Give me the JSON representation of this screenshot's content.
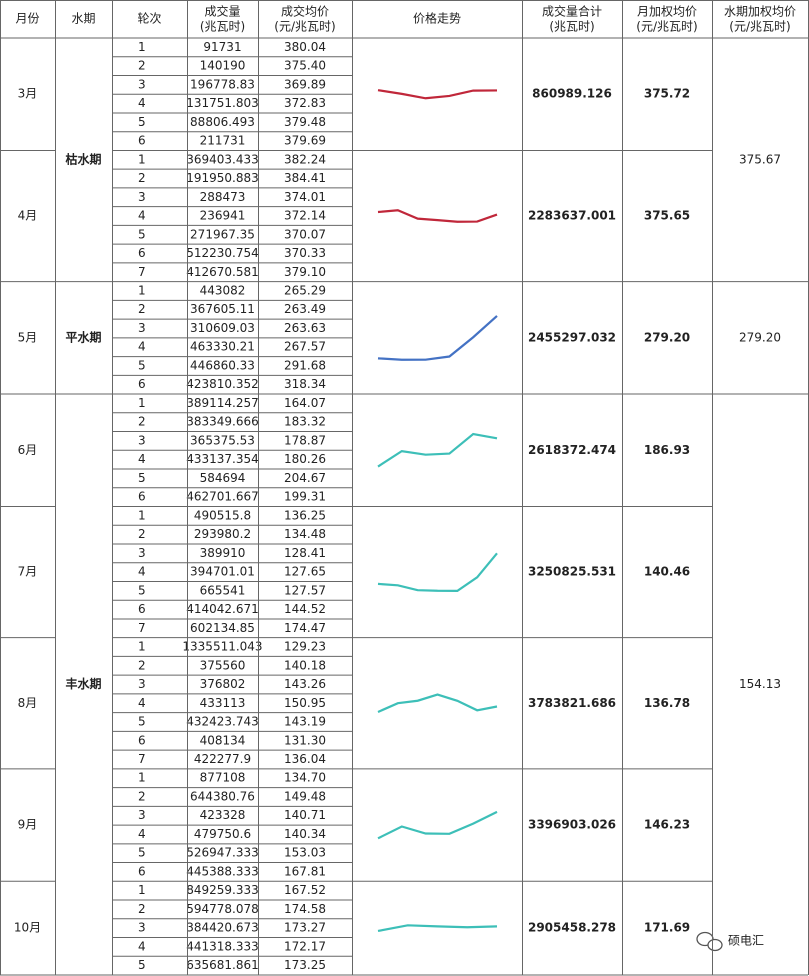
{
  "header": [
    [
      "月份"
    ],
    [
      "水期"
    ],
    [
      "轮次"
    ],
    [
      "成交量",
      "(兆瓦时)"
    ],
    [
      "成交均价",
      "(元/兆瓦时)"
    ],
    [
      "价格走势"
    ],
    [
      "成交量合计",
      "(兆瓦时)"
    ],
    [
      "月加权均价",
      "(元/兆瓦时)"
    ],
    [
      "水期加权均价",
      "(元/兆瓦时)"
    ]
  ],
  "seasons": [
    {
      "name": "枯水期",
      "color": "#a8202e",
      "line_color": "#c0273a",
      "weighted": "375.67",
      "months": [
        {
          "label": "3月",
          "rounds": [
            "1",
            "2",
            "3",
            "4",
            "5",
            "6"
          ],
          "volumes": [
            "91731",
            "140190",
            "196778.83",
            "131751.803",
            "88806.493",
            "211731"
          ],
          "prices": [
            380.04,
            375.4,
            369.89,
            372.83,
            379.48,
            379.69
          ],
          "price_labels": [
            "380.04",
            "375.40",
            "369.89",
            "372.83",
            "379.48",
            "379.69"
          ],
          "total": "860989.126",
          "weighted": "375.72"
        },
        {
          "label": "4月",
          "rounds": [
            "1",
            "2",
            "3",
            "4",
            "5",
            "6",
            "7"
          ],
          "volumes": [
            "369403.433",
            "191950.883",
            "288473",
            "236941",
            "271967.35",
            "512230.754",
            "412670.581"
          ],
          "prices": [
            382.24,
            384.41,
            374.01,
            372.14,
            370.07,
            370.33,
            379.1
          ],
          "price_labels": [
            "382.24",
            "384.41",
            "374.01",
            "372.14",
            "370.07",
            "370.33",
            "379.10"
          ],
          "total": "2283637.001",
          "weighted": "375.65"
        }
      ]
    },
    {
      "name": "平水期",
      "color": "#2f4f9a",
      "line_color": "#4472c4",
      "weighted": "279.20",
      "months": [
        {
          "label": "5月",
          "rounds": [
            "1",
            "2",
            "3",
            "4",
            "5",
            "6"
          ],
          "volumes": [
            "443082",
            "367605.11",
            "310609.03",
            "463330.21",
            "446860.33",
            "423810.352"
          ],
          "prices": [
            265.29,
            263.49,
            263.63,
            267.57,
            291.68,
            318.34
          ],
          "price_labels": [
            "265.29",
            "263.49",
            "263.63",
            "267.57",
            "291.68",
            "318.34"
          ],
          "total": "2455297.032",
          "weighted": "279.20"
        }
      ]
    },
    {
      "name": "丰水期",
      "color": "#1e7a6a",
      "line_color": "#3dbfb8",
      "weighted": "154.13",
      "months": [
        {
          "label": "6月",
          "rounds": [
            "1",
            "2",
            "3",
            "4",
            "5",
            "6"
          ],
          "volumes": [
            "389114.257",
            "383349.666",
            "365375.53",
            "433137.354",
            "584694",
            "462701.667"
          ],
          "prices": [
            164.07,
            183.32,
            178.87,
            180.26,
            204.67,
            199.31
          ],
          "price_labels": [
            "164.07",
            "183.32",
            "178.87",
            "180.26",
            "204.67",
            "199.31"
          ],
          "total": "2618372.474",
          "weighted": "186.93"
        },
        {
          "label": "7月",
          "rounds": [
            "1",
            "2",
            "3",
            "4",
            "5",
            "6",
            "7"
          ],
          "volumes": [
            "490515.8",
            "293980.2",
            "389910",
            "394701.01",
            "665541",
            "414042.671",
            "602134.85"
          ],
          "prices": [
            136.25,
            134.48,
            128.41,
            127.65,
            127.57,
            144.52,
            174.47
          ],
          "price_labels": [
            "136.25",
            "134.48",
            "128.41",
            "127.65",
            "127.57",
            "144.52",
            "174.47"
          ],
          "total": "3250825.531",
          "weighted": "140.46"
        },
        {
          "label": "8月",
          "rounds": [
            "1",
            "2",
            "3",
            "4",
            "5",
            "6",
            "7"
          ],
          "volumes": [
            "1335511.043",
            "375560",
            "376802",
            "433113",
            "432423.743",
            "408134",
            "422277.9"
          ],
          "prices": [
            129.23,
            140.18,
            143.26,
            150.95,
            143.19,
            131.3,
            136.04
          ],
          "price_labels": [
            "129.23",
            "140.18",
            "143.26",
            "150.95",
            "143.19",
            "131.30",
            "136.04"
          ],
          "total": "3783821.686",
          "weighted": "136.78"
        },
        {
          "label": "9月",
          "rounds": [
            "1",
            "2",
            "3",
            "4",
            "5",
            "6"
          ],
          "volumes": [
            "877108",
            "644380.76",
            "423328",
            "479750.6",
            "526947.333",
            "445388.333"
          ],
          "prices": [
            134.7,
            149.48,
            140.71,
            140.34,
            153.03,
            167.81
          ],
          "price_labels": [
            "134.70",
            "149.48",
            "140.71",
            "140.34",
            "153.03",
            "167.81"
          ],
          "total": "3396903.026",
          "weighted": "146.23"
        },
        {
          "label": "10月",
          "rounds": [
            "1",
            "2",
            "3",
            "4",
            "5"
          ],
          "volumes": [
            "849259.333",
            "594778.078",
            "384420.673",
            "441318.333",
            "635681.861"
          ],
          "prices": [
            167.52,
            174.58,
            173.27,
            172.17,
            173.25
          ],
          "price_labels": [
            "167.52",
            "174.58",
            "173.27",
            "172.17",
            "173.25"
          ],
          "total": "2905458.278",
          "weighted": "171.69"
        }
      ]
    }
  ],
  "watermark": "硕电汇"
}
